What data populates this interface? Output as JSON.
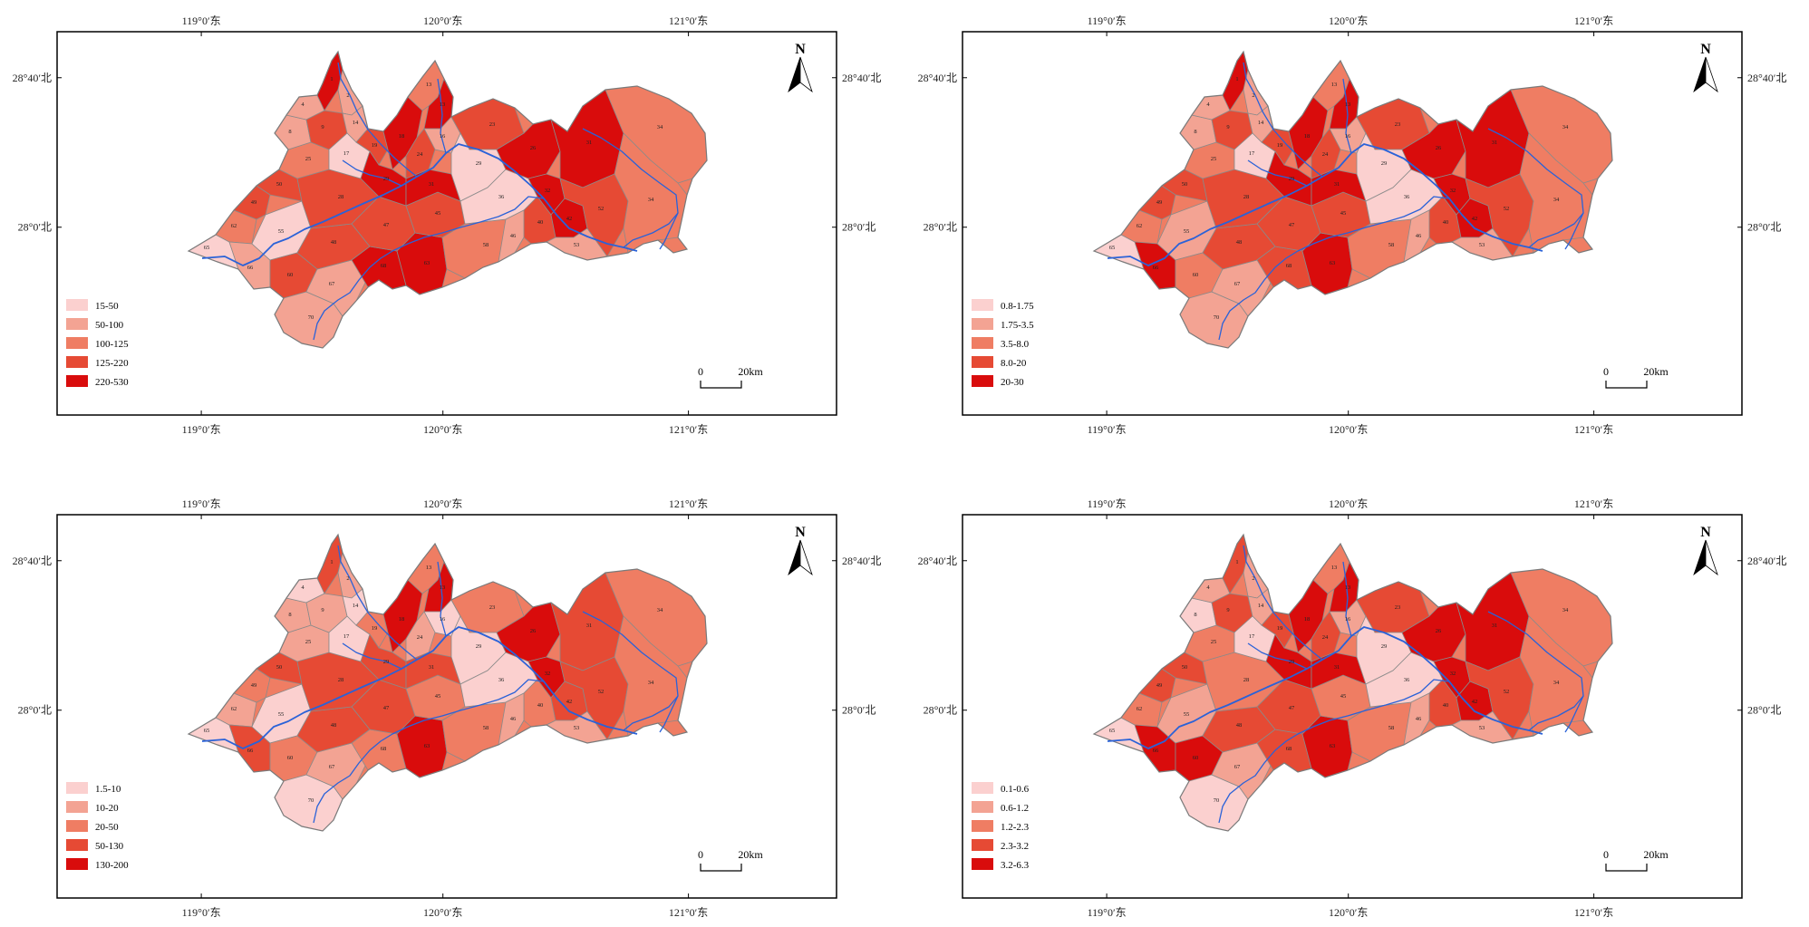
{
  "figure": {
    "grid_labels": {
      "lon": [
        "119°0′东",
        "120°0′东",
        "121°0′东"
      ],
      "lat": [
        "28°40′北",
        "28°0′北"
      ]
    },
    "north_label": "N",
    "scale_bar": {
      "zero": "0",
      "distance": "20km"
    },
    "basin_id_labels": [
      "1",
      "2",
      "4",
      "8",
      "9",
      "13",
      "14",
      "17",
      "18",
      "19",
      "23",
      "24",
      "25",
      "26",
      "28",
      "29",
      "31",
      "32",
      "34",
      "36",
      "40",
      "42",
      "45",
      "46",
      "47",
      "48",
      "49",
      "50",
      "52",
      "53",
      "55",
      "58",
      "60",
      "62",
      "63",
      "64",
      "65",
      "66",
      "67",
      "68",
      "70"
    ],
    "panels": [
      {
        "id": "panel-1",
        "legend": [
          {
            "label": "15-50",
            "color": "#fbd0cf"
          },
          {
            "label": "50-100",
            "color": "#f3a393"
          },
          {
            "label": "100-125",
            "color": "#ef7d63"
          },
          {
            "label": "125-220",
            "color": "#e64a34"
          },
          {
            "label": "220-530",
            "color": "#d90c0c"
          }
        ]
      },
      {
        "id": "panel-2",
        "legend": [
          {
            "label": "0.8-1.75",
            "color": "#fbd0cf"
          },
          {
            "label": "1.75-3.5",
            "color": "#f3a393"
          },
          {
            "label": "3.5-8.0",
            "color": "#ef7d63"
          },
          {
            "label": "8.0-20",
            "color": "#e64a34"
          },
          {
            "label": "20-30",
            "color": "#d90c0c"
          }
        ]
      },
      {
        "id": "panel-3",
        "legend": [
          {
            "label": "1.5-10",
            "color": "#fbd0cf"
          },
          {
            "label": "10-20",
            "color": "#f3a393"
          },
          {
            "label": "20-50",
            "color": "#ef7d63"
          },
          {
            "label": "50-130",
            "color": "#e64a34"
          },
          {
            "label": "130-200",
            "color": "#d90c0c"
          }
        ]
      },
      {
        "id": "panel-4",
        "legend": [
          {
            "label": "0.1-0.6",
            "color": "#fbd0cf"
          },
          {
            "label": "0.6-1.2",
            "color": "#f3a393"
          },
          {
            "label": "1.2-2.3",
            "color": "#ef7d63"
          },
          {
            "label": "2.3-3.2",
            "color": "#e64a34"
          },
          {
            "label": "3.2-6.3",
            "color": "#d90c0c"
          }
        ]
      }
    ],
    "colors": {
      "river": "#2a62d8",
      "boundary": "#8a8a8a",
      "frame": "#000000"
    }
  }
}
